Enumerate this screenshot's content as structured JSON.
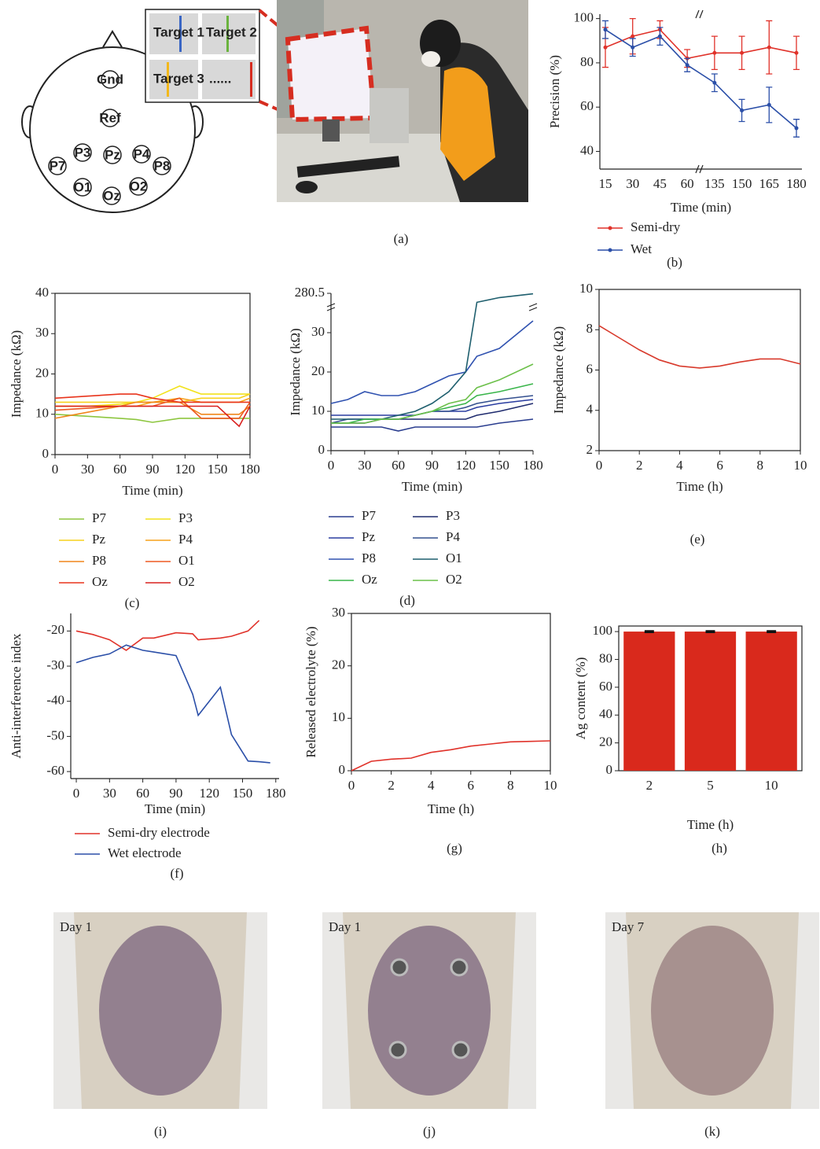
{
  "panel_a": {
    "caption": "(a)",
    "electrodes": [
      "Gnd",
      "Ref",
      "P3",
      "Pz",
      "P4",
      "P7",
      "P8",
      "O1",
      "Oz",
      "O2"
    ],
    "targets": [
      "Target 1",
      "Target 2",
      "Target 3",
      "......"
    ]
  },
  "chart_data": [
    {
      "type": "line",
      "panel": "(b)",
      "xlabel": "Time (min)",
      "ylabel": "Precision (%)",
      "categories": [
        "15",
        "30",
        "45",
        "60",
        "135",
        "150",
        "165",
        "180"
      ],
      "ylim": [
        32,
        102
      ],
      "yticks": [
        40,
        60,
        80,
        100
      ],
      "series": [
        {
          "name": "Semi-dry",
          "color": "#e0322a",
          "values": [
            87,
            92,
            95,
            82,
            84.5,
            84.5,
            87,
            84.5
          ],
          "errors": [
            9,
            8,
            4,
            4,
            7.5,
            7.5,
            12,
            7.5
          ]
        },
        {
          "name": "Wet",
          "color": "#2b4fa8",
          "values": [
            95,
            87,
            92,
            79,
            71,
            58.5,
            61,
            50.5
          ],
          "errors": [
            4,
            4,
            4,
            3,
            4,
            5,
            8,
            4
          ]
        }
      ]
    },
    {
      "type": "line",
      "panel": "(c)",
      "xlabel": "Time (min)",
      "ylabel": "Impedance (kΩ)",
      "x": [
        0,
        30,
        60,
        75,
        90,
        115,
        135,
        150,
        170,
        180
      ],
      "xlim": [
        0,
        180
      ],
      "xticks": [
        0,
        30,
        60,
        90,
        120,
        150,
        180
      ],
      "ylim": [
        0,
        40
      ],
      "yticks": [
        0,
        10,
        20,
        30,
        40
      ],
      "series": [
        {
          "name": "P7",
          "color": "#8dc63f",
          "values": [
            10,
            9.5,
            9,
            8.7,
            8,
            9,
            9,
            9,
            9,
            9
          ]
        },
        {
          "name": "P3",
          "color": "#f2e21b",
          "values": [
            12,
            12,
            12.5,
            13,
            14,
            17,
            15,
            15,
            15,
            15
          ]
        },
        {
          "name": "Pz",
          "color": "#f7d21e",
          "values": [
            13,
            13,
            13,
            13,
            13,
            13,
            14,
            14,
            14,
            15
          ]
        },
        {
          "name": "P4",
          "color": "#f7a21b",
          "values": [
            12,
            12,
            12,
            12,
            13,
            14,
            13,
            13,
            13,
            14
          ]
        },
        {
          "name": "P8",
          "color": "#f0861c",
          "values": [
            9,
            10.5,
            12,
            13,
            13,
            13,
            10,
            10,
            10,
            12
          ]
        },
        {
          "name": "O1",
          "color": "#ee5a22",
          "values": [
            11,
            11.5,
            12,
            12,
            12,
            14,
            9,
            9,
            9,
            13
          ]
        },
        {
          "name": "Oz",
          "color": "#e8341c",
          "values": [
            14,
            14.5,
            15,
            15,
            14,
            13,
            13,
            13,
            13,
            13
          ]
        },
        {
          "name": "O2",
          "color": "#d9201e",
          "values": [
            12,
            12,
            12,
            12,
            12,
            12,
            12,
            12,
            7,
            12
          ]
        }
      ]
    },
    {
      "type": "line",
      "panel": "(d)",
      "xlabel": "Time (min)",
      "ylabel": "Impedance (kΩ)",
      "x": [
        0,
        15,
        30,
        45,
        60,
        75,
        90,
        105,
        120,
        130,
        150,
        180
      ],
      "xlim": [
        0,
        180
      ],
      "xticks": [
        0,
        30,
        60,
        90,
        120,
        150,
        180
      ],
      "ylim": [
        0,
        280.5
      ],
      "yticks": [
        0,
        10,
        20,
        30,
        280.5
      ],
      "series": [
        {
          "name": "P7",
          "color": "#2a3d8f",
          "values": [
            6,
            6,
            6,
            6,
            5,
            6,
            6,
            6,
            6,
            6,
            7,
            8
          ]
        },
        {
          "name": "P3",
          "color": "#1f2b6e",
          "values": [
            7,
            7,
            7,
            8,
            8,
            8,
            8,
            8,
            8,
            9,
            10,
            12
          ]
        },
        {
          "name": "Pz",
          "color": "#2a3da0",
          "values": [
            9,
            9,
            9,
            9,
            9,
            9,
            10,
            10,
            10,
            11,
            12,
            13
          ]
        },
        {
          "name": "P4",
          "color": "#34508f",
          "values": [
            7,
            8,
            8,
            8,
            8,
            9,
            10,
            10,
            11,
            12,
            13,
            14
          ]
        },
        {
          "name": "P8",
          "color": "#3052b0",
          "values": [
            12,
            13,
            15,
            14,
            14,
            15,
            17,
            19,
            20,
            24,
            26,
            33
          ]
        },
        {
          "name": "O1",
          "color": "#1f5f6e",
          "values": [
            8,
            8,
            8,
            8,
            9,
            10,
            12,
            15,
            20,
            271,
            276,
            280
          ]
        },
        {
          "name": "Oz",
          "color": "#39b54a",
          "values": [
            7,
            7,
            8,
            8,
            8,
            9,
            10,
            11,
            12,
            14,
            15,
            17
          ]
        },
        {
          "name": "O2",
          "color": "#6cc04a",
          "values": [
            7,
            7,
            7,
            8,
            8,
            9,
            10,
            12,
            13,
            16,
            18,
            22
          ]
        }
      ]
    },
    {
      "type": "line",
      "panel": "(e)",
      "xlabel": "Time (h)",
      "ylabel": "Impedance (kΩ)",
      "x": [
        0,
        1,
        2,
        3,
        4,
        5,
        6,
        7,
        8,
        9,
        10
      ],
      "xlim": [
        0,
        10
      ],
      "xticks": [
        0,
        2,
        4,
        6,
        8,
        10
      ],
      "ylim": [
        2,
        10
      ],
      "yticks": [
        2,
        4,
        6,
        8,
        10
      ],
      "series": [
        {
          "color": "#d83a2c",
          "values": [
            8.2,
            7.6,
            7.0,
            6.5,
            6.2,
            6.1,
            6.2,
            6.4,
            6.55,
            6.55,
            6.3
          ]
        }
      ]
    },
    {
      "type": "line",
      "panel": "(f)",
      "xlabel": "Time (min)",
      "ylabel": "Anti-interference index",
      "x": [
        0,
        15,
        30,
        45,
        60,
        70,
        90,
        105,
        110,
        130,
        140,
        155,
        165,
        175
      ],
      "xlim": [
        -5,
        183
      ],
      "xticks": [
        0,
        30,
        60,
        90,
        120,
        150,
        180
      ],
      "ylim": [
        -62,
        -15
      ],
      "yticks": [
        -60,
        -50,
        -40,
        -30,
        -20
      ],
      "series": [
        {
          "name": "Semi-dry electrode",
          "color": "#e0322a",
          "values": [
            -20,
            -21,
            -22.5,
            -25.5,
            -22,
            -22,
            -20.5,
            -20.8,
            -22.5,
            -22,
            -21.5,
            -20,
            -17,
            null
          ]
        },
        {
          "name": "Wet electrode",
          "color": "#2b4fa8",
          "values": [
            -29,
            -27.5,
            -26.5,
            -24,
            -25.5,
            -26,
            -27,
            -38,
            -44,
            -36,
            -49.5,
            -57,
            -57.2,
            -57.5
          ]
        }
      ]
    },
    {
      "type": "line",
      "panel": "(g)",
      "xlabel": "Time (h)",
      "ylabel": "Released electrolyte (%)",
      "x": [
        0,
        1,
        2,
        3,
        4,
        5,
        6,
        7,
        8,
        9,
        10
      ],
      "xlim": [
        0,
        10
      ],
      "xticks": [
        0,
        2,
        4,
        6,
        8,
        10
      ],
      "ylim": [
        0,
        30
      ],
      "yticks": [
        0,
        10,
        20,
        30
      ],
      "series": [
        {
          "color": "#e0322a",
          "values": [
            0,
            1.8,
            2.2,
            2.4,
            3.5,
            4,
            4.7,
            5.1,
            5.5,
            5.6,
            5.7
          ]
        }
      ]
    },
    {
      "type": "bar",
      "panel": "(h)",
      "xlabel": "Time (h)",
      "ylabel": "Ag content (%)",
      "categories": [
        "2",
        "5",
        "10"
      ],
      "values": [
        100,
        100,
        100
      ],
      "errors": [
        0.5,
        0.5,
        0.5
      ],
      "color": "#d9291c",
      "ylim": [
        0,
        104
      ],
      "yticks": [
        0,
        20,
        40,
        60,
        80,
        100
      ]
    }
  ],
  "photos": [
    {
      "label": "Day 1",
      "caption": "(i)"
    },
    {
      "label": "Day 1",
      "caption": "(j)"
    },
    {
      "label": "Day 7",
      "caption": "(k)"
    }
  ]
}
